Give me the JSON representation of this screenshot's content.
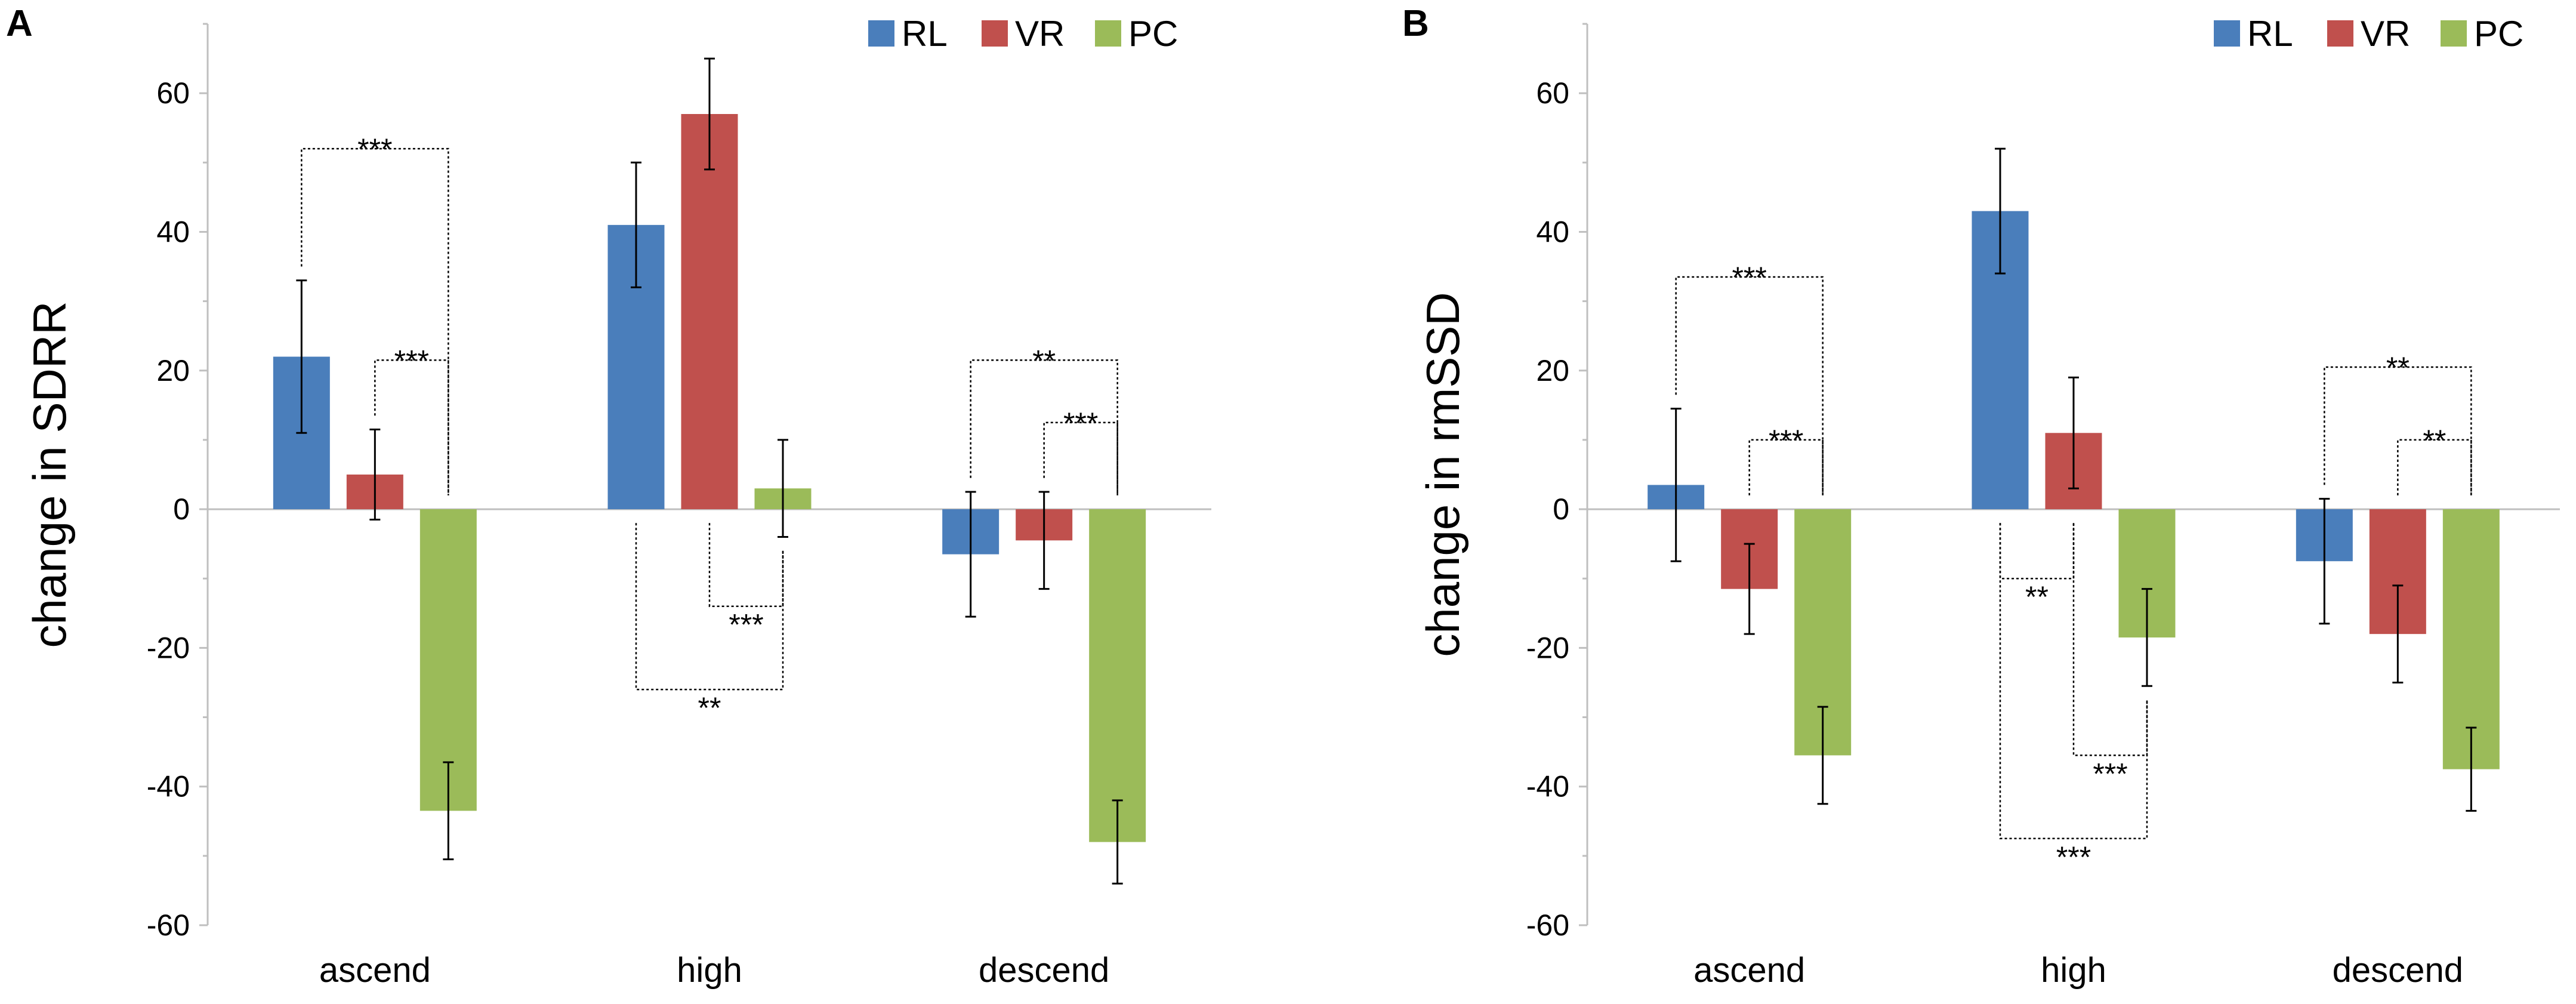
{
  "chart_data": [
    {
      "panel": "A",
      "type": "bar",
      "ylabel": "change in SDRR",
      "ylim": [
        -60,
        70
      ],
      "yticks": [
        -60,
        -40,
        -20,
        0,
        20,
        40,
        60
      ],
      "categories": [
        "ascend",
        "high",
        "descend"
      ],
      "series": [
        {
          "name": "RL",
          "color": "#4A7EBB",
          "values": [
            22,
            41,
            -6.5
          ],
          "errors": [
            11,
            9,
            9
          ]
        },
        {
          "name": "VR",
          "color": "#C0504D",
          "values": [
            5,
            57,
            -4.5
          ],
          "errors": [
            6.5,
            8,
            7
          ]
        },
        {
          "name": "PC",
          "color": "#9BBB59",
          "values": [
            -43.5,
            3,
            -48
          ],
          "errors": [
            7,
            7,
            6
          ]
        }
      ],
      "annotations": [
        {
          "label": "***",
          "category": 0,
          "from": "RL",
          "to": "PC",
          "side": "top"
        },
        {
          "label": "***",
          "category": 0,
          "from": "VR",
          "to": "PC",
          "side": "top"
        },
        {
          "label": "***",
          "category": 1,
          "from": "VR",
          "to": "PC",
          "side": "bottom"
        },
        {
          "label": "**",
          "category": 1,
          "from": "RL",
          "to": "PC",
          "side": "bottom"
        },
        {
          "label": "**",
          "category": 2,
          "from": "RL",
          "to": "PC",
          "side": "top"
        },
        {
          "label": "***",
          "category": 2,
          "from": "VR",
          "to": "PC",
          "side": "top"
        }
      ]
    },
    {
      "panel": "B",
      "type": "bar",
      "ylabel": "change in rmSSD",
      "ylim": [
        -60,
        70
      ],
      "yticks": [
        -60,
        -40,
        -20,
        0,
        20,
        40,
        60
      ],
      "categories": [
        "ascend",
        "high",
        "descend"
      ],
      "series": [
        {
          "name": "RL",
          "color": "#4A7EBB",
          "values": [
            3.5,
            43,
            -7.5
          ],
          "errors": [
            11,
            9,
            9
          ]
        },
        {
          "name": "VR",
          "color": "#C0504D",
          "values": [
            -11.5,
            11,
            -18
          ],
          "errors": [
            6.5,
            8,
            7
          ]
        },
        {
          "name": "PC",
          "color": "#9BBB59",
          "values": [
            -35.5,
            -18.5,
            -37.5
          ],
          "errors": [
            7,
            7,
            6
          ]
        }
      ],
      "annotations": [
        {
          "label": "***",
          "category": 0,
          "from": "RL",
          "to": "PC",
          "side": "top"
        },
        {
          "label": "***",
          "category": 0,
          "from": "VR",
          "to": "PC",
          "side": "top"
        },
        {
          "label": "**",
          "category": 1,
          "from": "RL",
          "to": "VR",
          "side": "bottom"
        },
        {
          "label": "***",
          "category": 1,
          "from": "VR",
          "to": "PC",
          "side": "bottom"
        },
        {
          "label": "***",
          "category": 1,
          "from": "RL",
          "to": "PC",
          "side": "bottom"
        },
        {
          "label": "**",
          "category": 2,
          "from": "RL",
          "to": "PC",
          "side": "top"
        },
        {
          "label": "**",
          "category": 2,
          "from": "VR",
          "to": "PC",
          "side": "top"
        }
      ]
    }
  ]
}
